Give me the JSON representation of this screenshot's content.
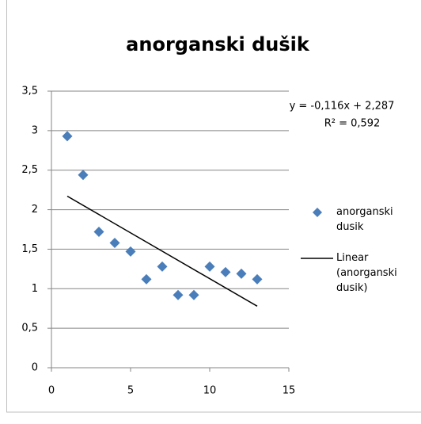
{
  "chart_data": {
    "type": "scatter",
    "title": "anorganski dušik",
    "series": [
      {
        "name": "anorganski dusik",
        "color": "#4a7ebb",
        "x": [
          1,
          2,
          3,
          4,
          5,
          6,
          7,
          8,
          9,
          10,
          11,
          12,
          13
        ],
        "values": [
          2.93,
          2.44,
          1.72,
          1.58,
          1.47,
          1.12,
          1.28,
          0.92,
          0.92,
          1.28,
          1.21,
          1.19,
          1.12
        ]
      }
    ],
    "trendline": {
      "name": "Linear (anorganski dusik)",
      "color": "#000000",
      "slope": -0.116,
      "intercept": 2.287,
      "xrange": [
        1,
        13
      ],
      "equation": "y = -0,116x + 2,287",
      "r2_label": "R² = 0,592"
    },
    "xlim": [
      0,
      15
    ],
    "xticks": [
      0,
      5,
      10,
      15
    ],
    "ylim": [
      0,
      3.5
    ],
    "yticks": [
      0,
      {
        "value": 0.5,
        "label": "0,5"
      },
      1,
      {
        "value": 1.5,
        "label": "1,5"
      },
      2,
      {
        "value": 2.5,
        "label": "2,5"
      },
      3,
      {
        "value": 3.5,
        "label": "3,5"
      }
    ],
    "grid": true
  }
}
